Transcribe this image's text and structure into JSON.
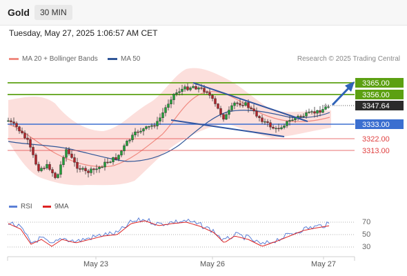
{
  "header": {
    "title": "Gold",
    "timeframe": "30 MIN"
  },
  "datetime": "Tuesday, May 27, 2025 1:06:57 AM CET",
  "legend": {
    "ma20_label": "MA 20 + Bollinger Bands",
    "ma50_label": "MA 50",
    "credit": "Research © 2025 Trading Central"
  },
  "colors": {
    "ma20": "#f08a80",
    "bollinger_fill": "#fbd9d6",
    "ma50": "#2f5597",
    "resistance": "#5ca012",
    "support": "#3b6fd0",
    "target": "#e04040",
    "bull": "#22a03a",
    "bear": "#b0242a",
    "rsi": "#5b7fd6",
    "rsi_ma": "#dd2222",
    "arrow": "#2f63b8"
  },
  "levels": {
    "r2": "3365.00",
    "r1": "3356.00",
    "last": "3347.64",
    "pivot": "3333.00",
    "s1": "3322.00",
    "s2": "3313.00"
  },
  "x_labels": [
    "May 23",
    "May 26",
    "May 27"
  ],
  "rsi_panel": {
    "rsi_label": "RSI",
    "ma_label": "9MA",
    "ticks": [
      "70",
      "50",
      "30"
    ]
  }
}
